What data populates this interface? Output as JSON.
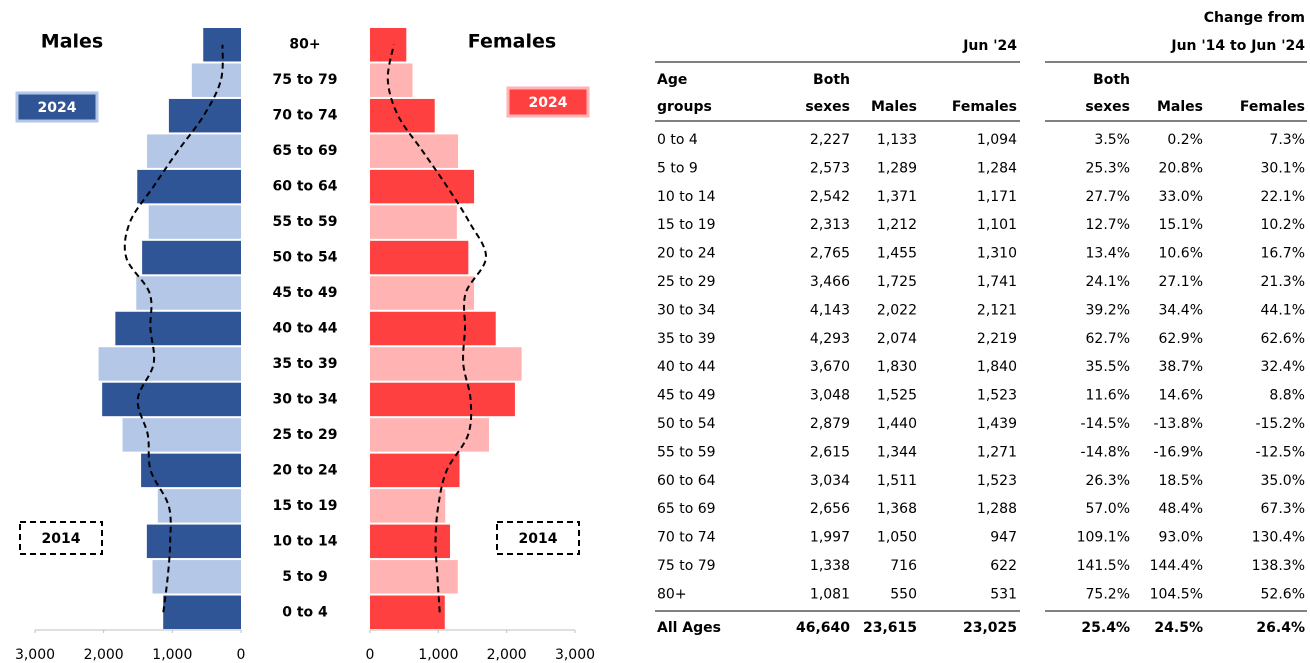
{
  "chart_data": [
    {
      "type": "bar",
      "orientation": "horizontal",
      "title": "Males",
      "categories": [
        "0 to 4",
        "5 to 9",
        "10 to 14",
        "15 to 19",
        "20 to 24",
        "25 to 29",
        "30 to 34",
        "35 to 39",
        "40 to 44",
        "45 to 49",
        "50 to 54",
        "55 to 59",
        "60 to 64",
        "65 to 69",
        "70 to 74",
        "75 to 79",
        "80+"
      ],
      "xlim": [
        0,
        3000
      ],
      "x_reversed": true,
      "xticks": [
        {
          "value": 3000,
          "label": "3,000"
        },
        {
          "value": 2000,
          "label": "2,000"
        },
        {
          "value": 1000,
          "label": "1,000"
        },
        0
      ],
      "series": [
        {
          "name": "2024",
          "kind": "bar",
          "color": "#2f5597",
          "alt_color": "#b4c7e7",
          "values": [
            1133,
            1289,
            1371,
            1212,
            1455,
            1725,
            2022,
            2074,
            1830,
            1525,
            1440,
            1344,
            1511,
            1368,
            1050,
            716,
            550
          ]
        },
        {
          "name": "2014",
          "kind": "line",
          "color": "#000000",
          "values": [
            1131,
            1067,
            1031,
            1053,
            1316,
            1357,
            1504,
            1273,
            1319,
            1331,
            1671,
            1617,
            1275,
            922,
            544,
            293,
            269
          ]
        }
      ]
    },
    {
      "type": "bar",
      "orientation": "horizontal",
      "title": "Females",
      "xlim": [
        0,
        3000
      ],
      "xticks": [
        0,
        {
          "value": 1000,
          "label": "1,000"
        },
        {
          "value": 2000,
          "label": "2,000"
        },
        {
          "value": 3000,
          "label": "3,000"
        }
      ],
      "series": [
        {
          "name": "2024",
          "kind": "bar",
          "color": "#ff4040",
          "alt_color": "#ffb3b3",
          "values": [
            1094,
            1284,
            1171,
            1101,
            1310,
            1741,
            2121,
            2219,
            1840,
            1523,
            1439,
            1271,
            1523,
            1288,
            947,
            622,
            531
          ]
        },
        {
          "name": "2014",
          "kind": "line",
          "color": "#000000",
          "values": [
            1020,
            987,
            959,
            999,
            1123,
            1435,
            1472,
            1365,
            1390,
            1400,
            1697,
            1453,
            1128,
            770,
            411,
            261,
            348
          ]
        }
      ]
    }
  ],
  "table": {
    "group_a": "Jun '24",
    "group_b": [
      "Change from",
      "Jun '14 to Jun '24"
    ],
    "columns": [
      [
        "Age",
        "groups"
      ],
      [
        "Both",
        "sexes"
      ],
      [
        "Males"
      ],
      [
        "Females"
      ],
      [
        "Both",
        "sexes"
      ],
      [
        "Males"
      ],
      [
        "Females"
      ]
    ],
    "rows": [
      [
        "0 to 4",
        "2,227",
        "1,133",
        "1,094",
        "3.5%",
        "0.2%",
        "7.3%"
      ],
      [
        "5 to 9",
        "2,573",
        "1,289",
        "1,284",
        "25.3%",
        "20.8%",
        "30.1%"
      ],
      [
        "10 to 14",
        "2,542",
        "1,371",
        "1,171",
        "27.7%",
        "33.0%",
        "22.1%"
      ],
      [
        "15 to 19",
        "2,313",
        "1,212",
        "1,101",
        "12.7%",
        "15.1%",
        "10.2%"
      ],
      [
        "20 to 24",
        "2,765",
        "1,455",
        "1,310",
        "13.4%",
        "10.6%",
        "16.7%"
      ],
      [
        "25 to 29",
        "3,466",
        "1,725",
        "1,741",
        "24.1%",
        "27.1%",
        "21.3%"
      ],
      [
        "30 to 34",
        "4,143",
        "2,022",
        "2,121",
        "39.2%",
        "34.4%",
        "44.1%"
      ],
      [
        "35 to 39",
        "4,293",
        "2,074",
        "2,219",
        "62.7%",
        "62.9%",
        "62.6%"
      ],
      [
        "40 to 44",
        "3,670",
        "1,830",
        "1,840",
        "35.5%",
        "38.7%",
        "32.4%"
      ],
      [
        "45 to 49",
        "3,048",
        "1,525",
        "1,523",
        "11.6%",
        "14.6%",
        "8.8%"
      ],
      [
        "50 to 54",
        "2,879",
        "1,440",
        "1,439",
        "-14.5%",
        "-13.8%",
        "-15.2%"
      ],
      [
        "55 to 59",
        "2,615",
        "1,344",
        "1,271",
        "-14.8%",
        "-16.9%",
        "-12.5%"
      ],
      [
        "60 to 64",
        "3,034",
        "1,511",
        "1,523",
        "26.3%",
        "18.5%",
        "35.0%"
      ],
      [
        "65 to 69",
        "2,656",
        "1,368",
        "1,288",
        "57.0%",
        "48.4%",
        "67.3%"
      ],
      [
        "70 to 74",
        "1,997",
        "1,050",
        "947",
        "109.1%",
        "93.0%",
        "130.4%"
      ],
      [
        "75 to 79",
        "1,338",
        "716",
        "622",
        "141.5%",
        "144.4%",
        "138.3%"
      ],
      [
        "80+",
        "1,081",
        "550",
        "531",
        "75.2%",
        "104.5%",
        "52.6%"
      ]
    ],
    "total": [
      "All Ages",
      "46,640",
      "23,615",
      "23,025",
      "25.4%",
      "24.5%",
      "26.4%"
    ]
  }
}
